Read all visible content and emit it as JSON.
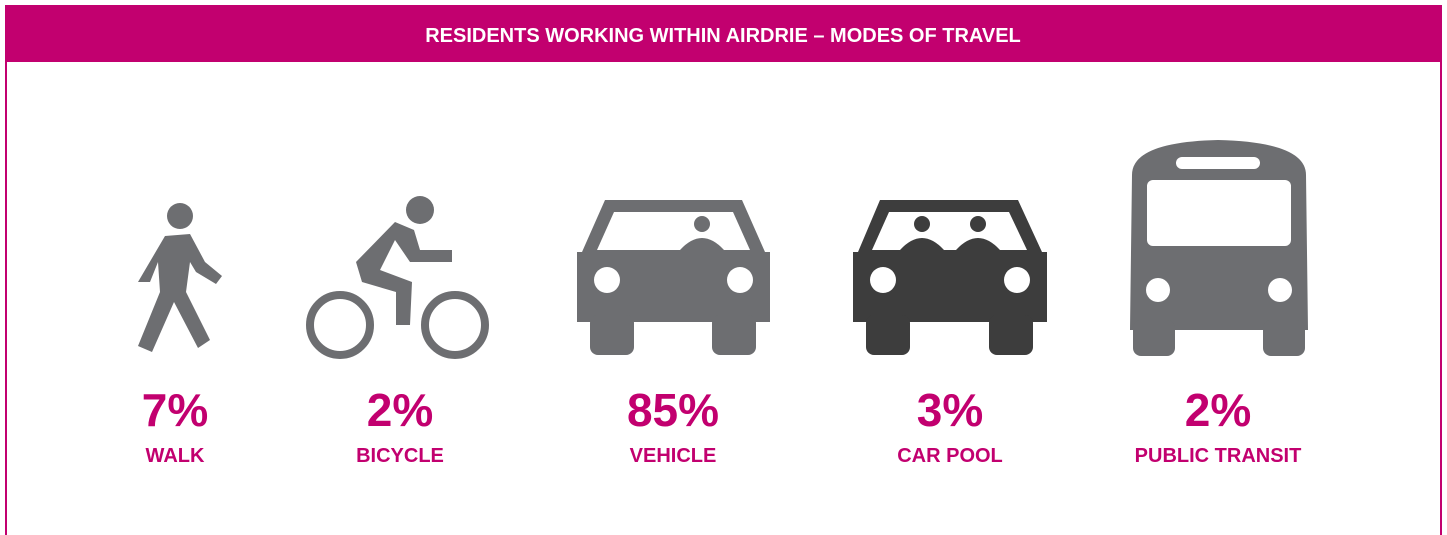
{
  "title": "RESIDENTS WORKING WITHIN AIRDRIE – MODES OF TRAVEL",
  "items": [
    {
      "value": "7%",
      "label": "WALK"
    },
    {
      "value": "2%",
      "label": "BICYCLE"
    },
    {
      "value": "85%",
      "label": "VEHICLE"
    },
    {
      "value": "3%",
      "label": "CAR POOL"
    },
    {
      "value": "2%",
      "label": "PUBLIC TRANSIT"
    }
  ]
}
